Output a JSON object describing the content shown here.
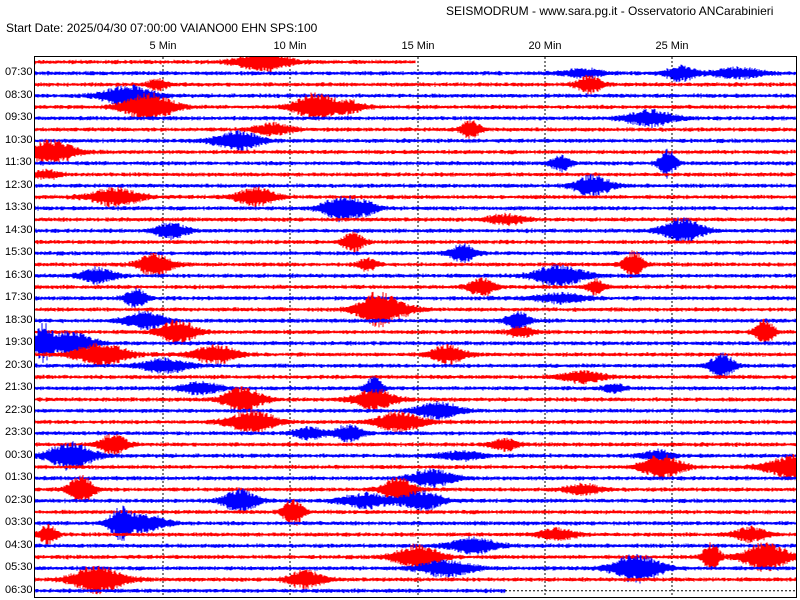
{
  "header": {
    "title": "SEISMODRUM - www.sara.pg.it - Osservatorio ANCarabinieri",
    "start_line": "Start Date: 2025/04/30 07:00:00 VAIANO00 EHN  SPS:100"
  },
  "minute_ticks": [
    "5 Min",
    "10 Min",
    "15 Min",
    "20 Min",
    "25 Min"
  ],
  "hour_labels": [
    "07:30",
    "08:30",
    "09:30",
    "10:30",
    "11:30",
    "12:30",
    "13:30",
    "14:30",
    "15:30",
    "16:30",
    "17:30",
    "18:30",
    "19:30",
    "20:30",
    "21:30",
    "22:30",
    "23:30",
    "00:30",
    "01:30",
    "02:30",
    "03:30",
    "04:30",
    "05:30",
    "06:30"
  ],
  "colors": {
    "trace_a": "#ff0000",
    "trace_b": "#0000ff",
    "frame": "#000000",
    "grid": "#000000"
  }
}
